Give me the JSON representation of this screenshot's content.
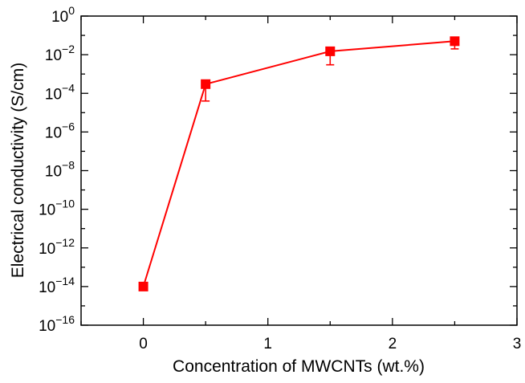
{
  "chart_data": {
    "type": "scatter",
    "title": "",
    "xlabel": "Concentration of MWCNTs (wt.%)",
    "ylabel": "Electrical conductivity (S/cm)",
    "xlim": [
      -0.5,
      3
    ],
    "ylim": [
      1e-16,
      1
    ],
    "yscale": "log",
    "x_ticks": [
      "0",
      "1",
      "2",
      "3"
    ],
    "y_ticks": [
      {
        "base": "10",
        "exp": "0"
      },
      {
        "base": "10",
        "exp": "−2"
      },
      {
        "base": "10",
        "exp": "−4"
      },
      {
        "base": "10",
        "exp": "−6"
      },
      {
        "base": "10",
        "exp": "−8"
      },
      {
        "base": "10",
        "exp": "−10"
      },
      {
        "base": "10",
        "exp": "−12"
      },
      {
        "base": "10",
        "exp": "−14"
      },
      {
        "base": "10",
        "exp": "−16"
      }
    ],
    "grid": false,
    "series": [
      {
        "color": "#ff0000",
        "marker": "square",
        "connected": true,
        "points": [
          {
            "x": 0,
            "y": 1e-14,
            "err_low": null,
            "err_high": null
          },
          {
            "x": 0.5,
            "y": 0.0003,
            "err_low": 4e-05,
            "err_high": 0.0004
          },
          {
            "x": 1.5,
            "y": 0.015,
            "err_low": 0.003,
            "err_high": 0.018
          },
          {
            "x": 2.5,
            "y": 0.05,
            "err_low": 0.02,
            "err_high": 0.06
          }
        ]
      }
    ]
  }
}
